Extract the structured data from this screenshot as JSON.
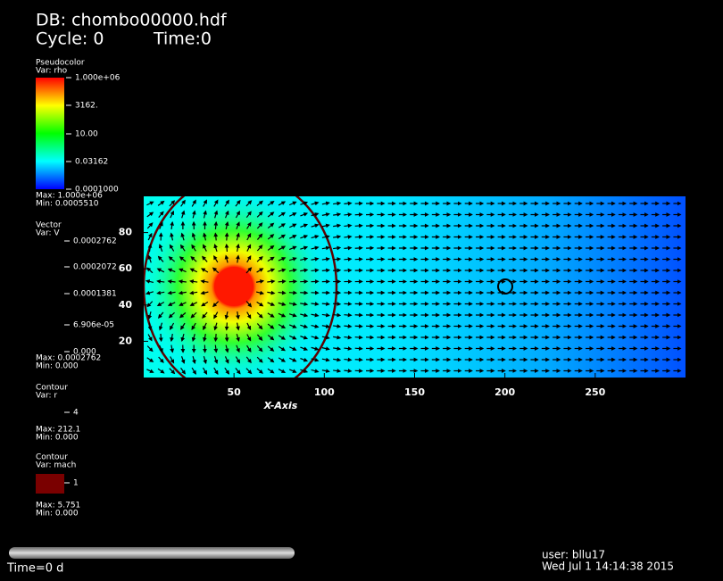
{
  "header": {
    "db": "DB: chombo00000.hdf",
    "cycle": "Cycle: 0",
    "time": "Time:0"
  },
  "legends": [
    {
      "title": "Pseudocolor",
      "var": "Var: rho",
      "labels": [
        "1.000e+06",
        "3162.",
        "10.00",
        "0.03162",
        "0.0001000"
      ],
      "max": "Max: 1.000e+06",
      "min": "Min: 0.0005510"
    },
    {
      "title": "Vector",
      "var": "Var: V",
      "labels": [
        "0.0002762",
        "0.0002072",
        "0.0001381",
        "6.906e-05",
        "0.000"
      ],
      "max": "Max: 0.0002762",
      "min": "Min: 0.000"
    },
    {
      "title": "Contour",
      "var": "Var: r",
      "labels": [
        "4"
      ],
      "max": "Max: 212.1",
      "min": "Min: 0.000"
    },
    {
      "title": "Contour",
      "var": "Var: mach",
      "labels": [
        "1"
      ],
      "max": "Max: 5.751",
      "min": "Min: 0.000"
    }
  ],
  "plot": {
    "x_label": "X-Axis",
    "xlim": [
      0,
      300
    ],
    "ylim": [
      0,
      100
    ],
    "xticks": [
      50,
      100,
      150,
      200,
      250
    ],
    "yticks": [
      20,
      40,
      60,
      80
    ]
  },
  "footer": {
    "time": "Time=0 d",
    "user": "user: bllu17",
    "date": "Wed Jul  1 14:14:38 2015"
  }
}
